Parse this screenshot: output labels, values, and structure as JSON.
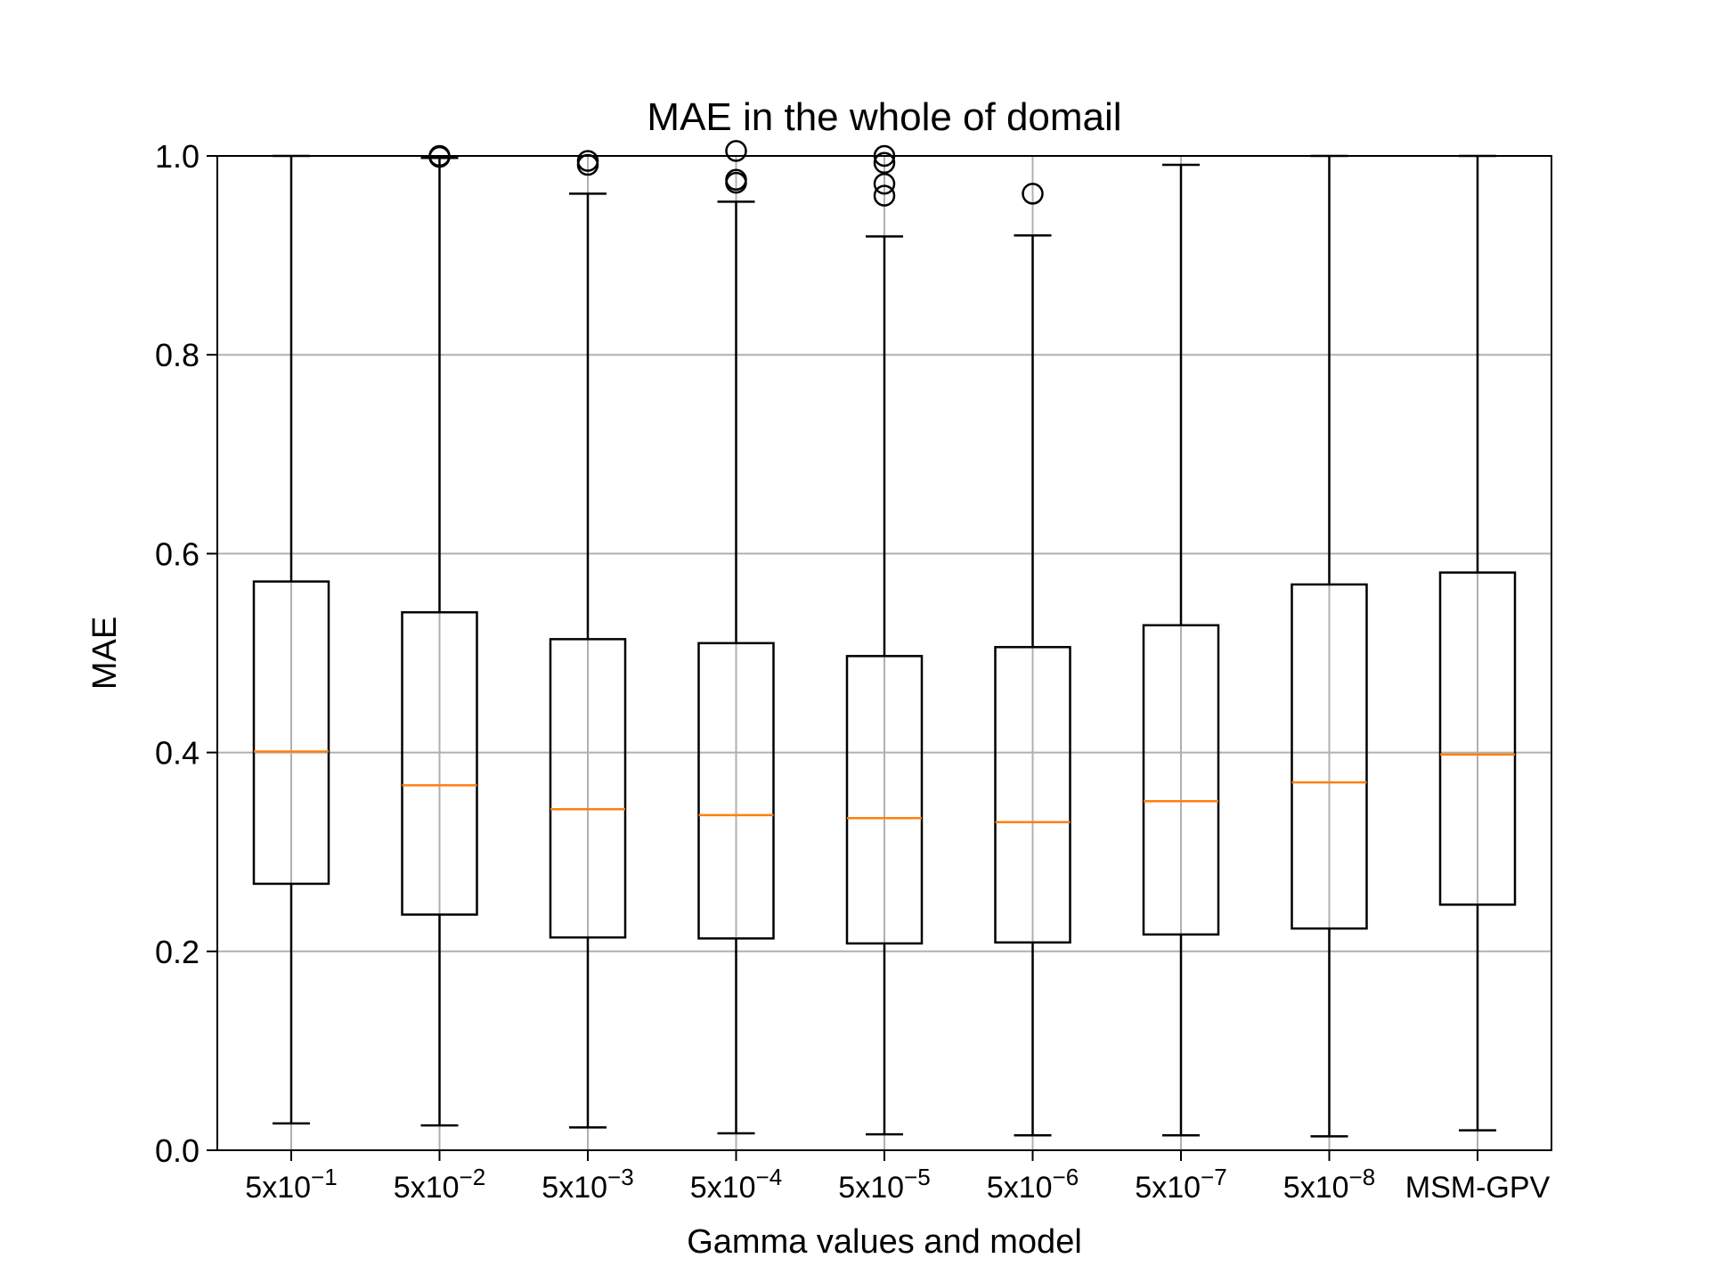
{
  "chart_data": {
    "type": "box",
    "title": "MAE in the whole of domail",
    "xlabel": "Gamma values and model",
    "ylabel": "MAE",
    "ylim": [
      0.0,
      1.0
    ],
    "yticks": [
      "0.0",
      "0.2",
      "0.4",
      "0.6",
      "0.8",
      "1.0"
    ],
    "grid": true,
    "categories": [
      {
        "base": "5x10",
        "exp": "−1"
      },
      {
        "base": "5x10",
        "exp": "−2"
      },
      {
        "base": "5x10",
        "exp": "−3"
      },
      {
        "base": "5x10",
        "exp": "−4"
      },
      {
        "base": "5x10",
        "exp": "−5"
      },
      {
        "base": "5x10",
        "exp": "−6"
      },
      {
        "base": "5x10",
        "exp": "−7"
      },
      {
        "base": "5x10",
        "exp": "−8"
      },
      {
        "base": "MSM-GPV",
        "exp": ""
      }
    ],
    "boxes": [
      {
        "whislo": 0.027,
        "q1": 0.268,
        "med": 0.401,
        "q3": 0.572,
        "whishi": 1.0,
        "fliers": []
      },
      {
        "whislo": 0.025,
        "q1": 0.237,
        "med": 0.367,
        "q3": 0.541,
        "whishi": 0.998,
        "fliers": [
          0.999,
          1.0
        ]
      },
      {
        "whislo": 0.023,
        "q1": 0.214,
        "med": 0.343,
        "q3": 0.514,
        "whishi": 0.962,
        "fliers": [
          0.991,
          0.995
        ]
      },
      {
        "whislo": 0.017,
        "q1": 0.213,
        "med": 0.337,
        "q3": 0.51,
        "whishi": 0.954,
        "fliers": [
          0.973,
          0.976,
          1.005
        ]
      },
      {
        "whislo": 0.016,
        "q1": 0.208,
        "med": 0.334,
        "q3": 0.497,
        "whishi": 0.919,
        "fliers": [
          0.96,
          0.972,
          0.993,
          1.0
        ]
      },
      {
        "whislo": 0.015,
        "q1": 0.209,
        "med": 0.33,
        "q3": 0.506,
        "whishi": 0.92,
        "fliers": [
          0.962
        ]
      },
      {
        "whislo": 0.015,
        "q1": 0.217,
        "med": 0.351,
        "q3": 0.528,
        "whishi": 0.991,
        "fliers": []
      },
      {
        "whislo": 0.014,
        "q1": 0.223,
        "med": 0.37,
        "q3": 0.569,
        "whishi": 1.0,
        "fliers": []
      },
      {
        "whislo": 0.02,
        "q1": 0.247,
        "med": 0.398,
        "q3": 0.581,
        "whishi": 1.0,
        "fliers": []
      }
    ],
    "colors": {
      "box": "#000000",
      "median": "#ff7f0e",
      "grid": "#b0b0b0"
    }
  }
}
